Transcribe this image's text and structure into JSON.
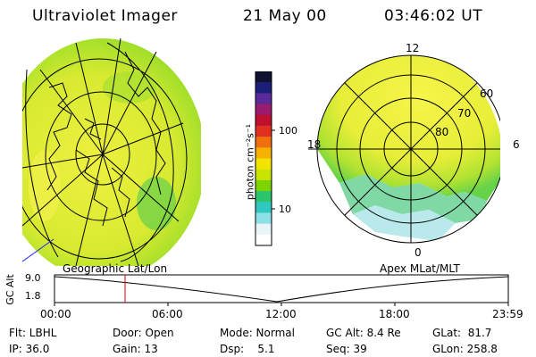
{
  "header": {
    "instrument": "Ultraviolet Imager",
    "date": "21 May 00",
    "time": "03:46:02 UT"
  },
  "colorbar": {
    "label": "photon cm⁻²s⁻¹",
    "ticks": [
      "100",
      "10"
    ],
    "colors": [
      "#101030",
      "#1c1f7a",
      "#5a2a9a",
      "#9b1b6e",
      "#c01030",
      "#e03020",
      "#f07010",
      "#f5b000",
      "#f2e400",
      "#c8e400",
      "#7ed400",
      "#2cc46c",
      "#2ec8c0",
      "#8ee0e8",
      "#e8f4f8",
      "#ffffff"
    ]
  },
  "mlt_map": {
    "labels": {
      "top": "12",
      "left": "18",
      "right": "6",
      "bottom": "0"
    },
    "lat_labels": [
      "60",
      "70",
      "80"
    ]
  },
  "timeline": {
    "y_axis_label": "GC Alt",
    "y_ticks": [
      "9.0",
      "1.8"
    ],
    "left_caption": "Geographic Lat/Lon",
    "right_caption": "Apex MLat/MLT",
    "x_ticks": [
      "00:00",
      "06:00",
      "12:00",
      "18:00",
      "23:59"
    ],
    "marker_color": "#e00000"
  },
  "footer": {
    "row1": {
      "flt": "Flt: LBHL",
      "door": "Door: Open",
      "mode": "Mode: Normal",
      "gcalt": "GC Alt: 8.4 Re",
      "glat": "GLat:  81.7"
    },
    "row2": {
      "ip": "IP: 36.0",
      "gain": "Gain: 13",
      "dsp": "Dsp:    5.1",
      "seq": "Seq: 39",
      "glon": "GLon: 258.8"
    }
  }
}
